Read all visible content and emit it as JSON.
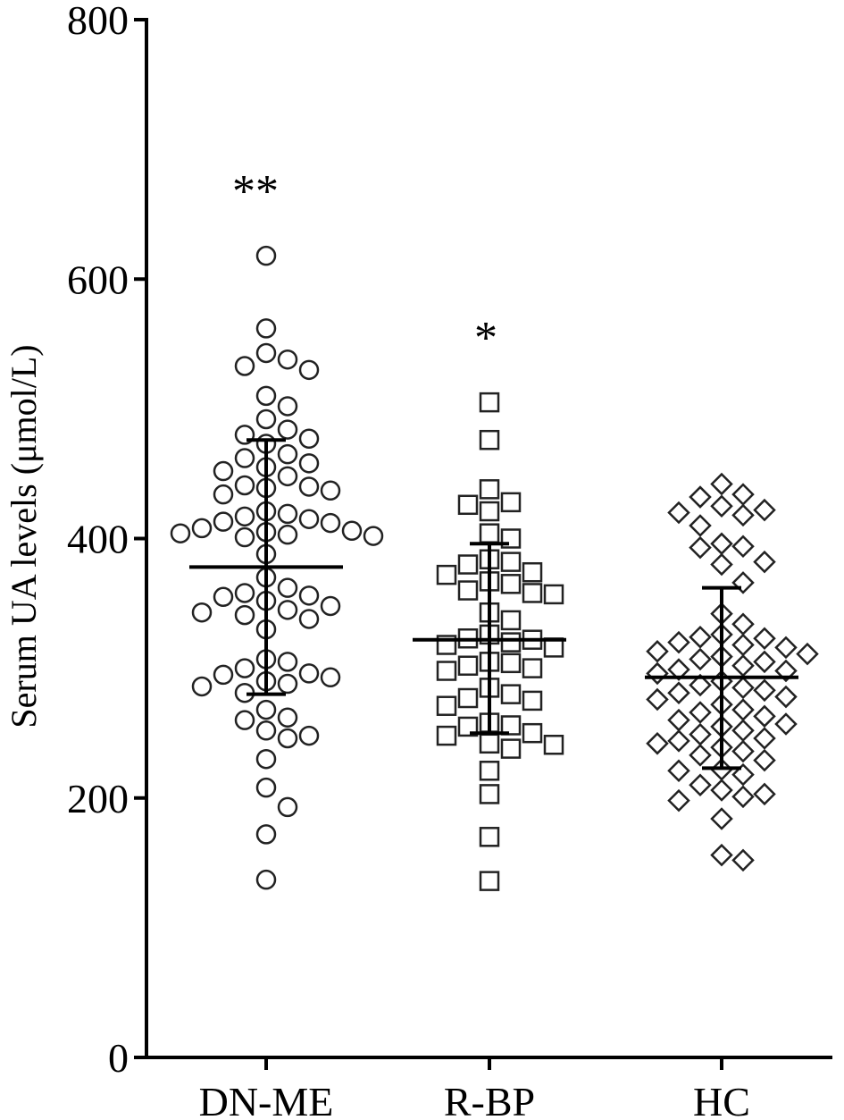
{
  "chart_data": {
    "type": "scatter",
    "ylabel": "Serum UA levels (μmol/L)",
    "xlabel": "",
    "ylim": [
      0,
      800
    ],
    "yticks": [
      "0",
      "200",
      "400",
      "600",
      "800"
    ],
    "grid": false,
    "categories": [
      "DN-ME",
      "R-BP",
      "HC"
    ],
    "groups": [
      {
        "label": "DN-ME",
        "marker": "circle",
        "significance": "**",
        "mean": 378,
        "sd_upper": 476,
        "sd_lower": 280,
        "values": [
          618,
          562,
          543,
          538,
          533,
          530,
          510,
          502,
          492,
          484,
          480,
          477,
          473,
          465,
          462,
          458,
          455,
          452,
          448,
          441,
          440,
          439,
          437,
          434,
          421,
          419,
          417,
          415,
          413,
          412,
          408,
          406,
          405,
          404,
          403,
          402,
          401,
          388,
          370,
          362,
          358,
          356,
          355,
          352,
          348,
          345,
          343,
          341,
          338,
          330,
          307,
          305,
          300,
          296,
          295,
          293,
          290,
          288,
          286,
          281,
          268,
          262,
          260,
          252,
          248,
          246,
          230,
          208,
          193,
          172,
          137
        ]
      },
      {
        "label": "R-BP",
        "marker": "square",
        "significance": "*",
        "mean": 322,
        "sd_upper": 396,
        "sd_lower": 250,
        "values": [
          505,
          476,
          438,
          428,
          426,
          421,
          404,
          400,
          384,
          382,
          380,
          374,
          372,
          367,
          365,
          360,
          358,
          357,
          343,
          337,
          326,
          323,
          322,
          320,
          318,
          316,
          305,
          304,
          302,
          300,
          298,
          285,
          280,
          277,
          275,
          271,
          258,
          256,
          255,
          250,
          248,
          242,
          241,
          238,
          221,
          203,
          170,
          136
        ]
      },
      {
        "label": "HC",
        "marker": "diamond",
        "significance": "",
        "mean": 293,
        "sd_upper": 362,
        "sd_lower": 223,
        "values": [
          442,
          434,
          432,
          425,
          422,
          420,
          418,
          410,
          396,
          394,
          393,
          382,
          380,
          366,
          342,
          334,
          326,
          324,
          323,
          320,
          318,
          316,
          313,
          311,
          309,
          307,
          305,
          302,
          299,
          298,
          296,
          290,
          287,
          285,
          283,
          281,
          278,
          276,
          272,
          268,
          266,
          263,
          260,
          257,
          255,
          252,
          249,
          246,
          244,
          242,
          239,
          236,
          233,
          229,
          222,
          221,
          218,
          210,
          206,
          203,
          201,
          198,
          184,
          156,
          152
        ]
      }
    ]
  }
}
